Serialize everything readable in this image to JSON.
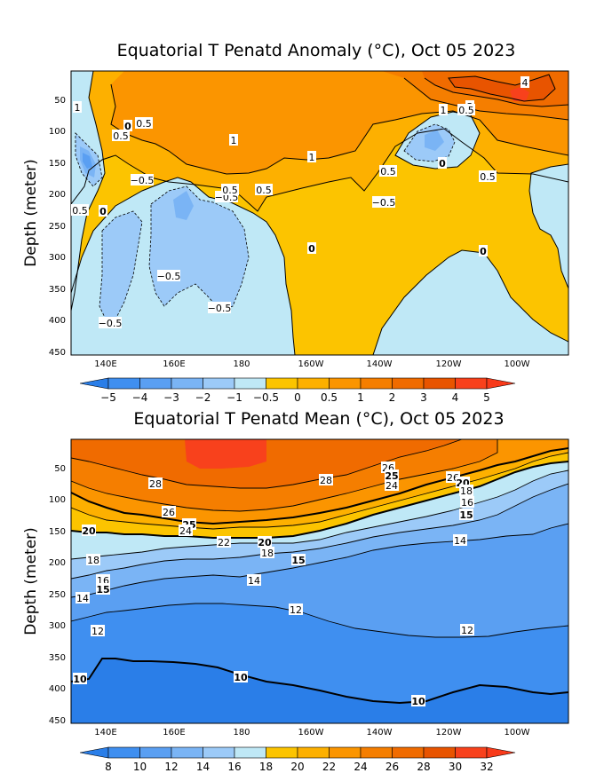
{
  "chart_data": [
    {
      "type": "heatmap",
      "title": "Equatorial T Penatd Anomaly (°C), Oct 05 2023",
      "ylabel": "Depth (meter)",
      "xlabel": "",
      "x_ticks": [
        "140E",
        "160E",
        "180",
        "160W",
        "140W",
        "120W",
        "100W"
      ],
      "y_ticks": [
        "50",
        "100",
        "150",
        "200",
        "250",
        "300",
        "350",
        "400",
        "450"
      ],
      "colorbar": {
        "labels": [
          "−5",
          "−4",
          "−3",
          "−2",
          "−1",
          "−0.5",
          "0",
          "0.5",
          "1",
          "2",
          "3",
          "4",
          "5"
        ],
        "colors": [
          "#2a7ee8",
          "#3f8ff0",
          "#5a9ff2",
          "#7ab4f5",
          "#9ccaf8",
          "#bfe8f6",
          "#fcc400",
          "#fdb000",
          "#fb9500",
          "#f57e00",
          "#f06b00",
          "#e85400",
          "#f8411c",
          "#f83a1a"
        ]
      },
      "contour_labels": [
        "1",
        "0.5",
        "0",
        "0.5",
        "1",
        "1",
        "0.5",
        "−0.5",
        "0.5",
        "0",
        "−0.5",
        "0.5",
        "0",
        "−0.5",
        "−0.5",
        "−0.5",
        "1",
        "3",
        "4",
        "0",
        "0.5",
        "0.5",
        "−0.5",
        "0.5",
        "0",
        "0"
      ]
    },
    {
      "type": "heatmap",
      "title": "Equatorial T Penatd Mean (°C), Oct 05 2023",
      "ylabel": "Depth (meter)",
      "xlabel": "",
      "x_ticks": [
        "140E",
        "160E",
        "180",
        "160W",
        "140W",
        "120W",
        "100W"
      ],
      "y_ticks": [
        "50",
        "100",
        "150",
        "200",
        "250",
        "300",
        "350",
        "400",
        "450"
      ],
      "colorbar": {
        "labels": [
          "8",
          "10",
          "12",
          "14",
          "16",
          "18",
          "20",
          "22",
          "24",
          "26",
          "28",
          "30",
          "32"
        ],
        "colors": [
          "#2a7ee8",
          "#3f8ff0",
          "#5a9ff2",
          "#7ab4f5",
          "#9ccaf8",
          "#bfe8f6",
          "#fcc400",
          "#fdb000",
          "#fb9500",
          "#f57e00",
          "#f06b00",
          "#e85400",
          "#f8411c",
          "#f83a1a"
        ]
      },
      "contour_labels": [
        "28",
        "28",
        "26",
        "25",
        "24",
        "22",
        "20",
        "20",
        "18",
        "15",
        "18",
        "16",
        "15",
        "14",
        "14",
        "12",
        "12",
        "12",
        "10",
        "10",
        "10",
        "26",
        "25",
        "24",
        "26",
        "20",
        "18",
        "16",
        "15",
        "14"
      ]
    }
  ]
}
